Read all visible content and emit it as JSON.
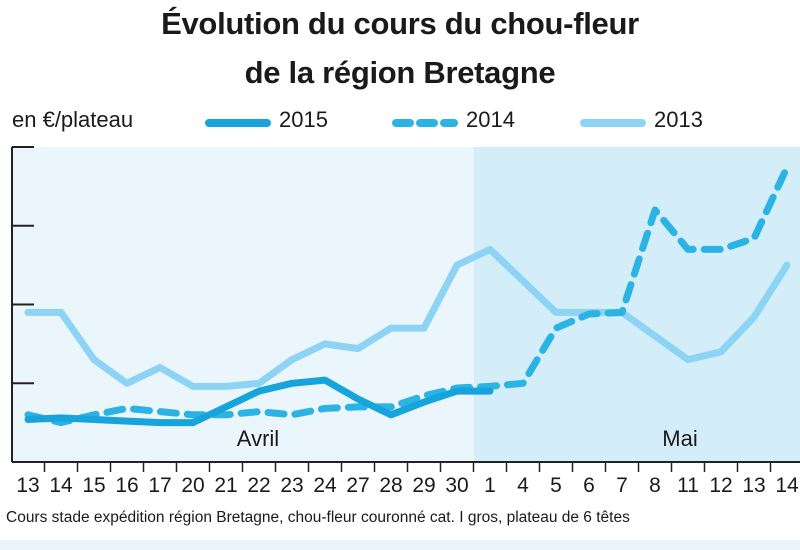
{
  "chart_data": {
    "type": "line",
    "title": "Évolution du cours du chou-fleur",
    "subtitle": "de la région Bretagne",
    "ylabel": "en €/plateau",
    "y_tick_labels": [],
    "x": [
      "13",
      "14",
      "15",
      "16",
      "17",
      "20",
      "21",
      "22",
      "23",
      "24",
      "27",
      "28",
      "29",
      "30",
      "1",
      "4",
      "5",
      "6",
      "7",
      "8",
      "11",
      "12",
      "13",
      "14"
    ],
    "months": [
      "Avril",
      "Mai"
    ],
    "series": [
      {
        "name": "2015",
        "style": "solid",
        "color": "#17a3dc",
        "values": [
          0.27,
          0.28,
          0.27,
          0.26,
          0.25,
          0.25,
          0.35,
          0.45,
          0.5,
          0.52,
          0.4,
          0.3,
          0.38,
          0.45,
          0.45,
          null,
          null,
          null,
          null,
          null,
          null,
          null,
          null,
          null
        ]
      },
      {
        "name": "2014",
        "style": "dashed",
        "color": "#2bb3e4",
        "values": [
          0.3,
          0.25,
          0.3,
          0.34,
          0.32,
          0.3,
          0.3,
          0.32,
          0.3,
          0.34,
          0.35,
          0.35,
          0.42,
          0.47,
          0.48,
          0.5,
          0.85,
          0.94,
          0.95,
          1.6,
          1.35,
          1.35,
          1.42,
          1.87
        ]
      },
      {
        "name": "2013",
        "style": "solid",
        "color": "#8dd3f3",
        "values": [
          0.95,
          0.95,
          0.65,
          0.5,
          0.6,
          0.48,
          0.48,
          0.5,
          0.65,
          0.75,
          0.72,
          0.85,
          0.85,
          1.25,
          1.35,
          1.15,
          0.95,
          0.95,
          0.95,
          0.8,
          0.65,
          0.7,
          0.92,
          1.25
        ]
      }
    ],
    "ylim": [
      0,
      2.0
    ],
    "grid": false,
    "legend_position": "top"
  },
  "source": "Cours stade expédition région Bretagne, chou-fleur couronné cat. I gros, plateau de 6 têtes"
}
